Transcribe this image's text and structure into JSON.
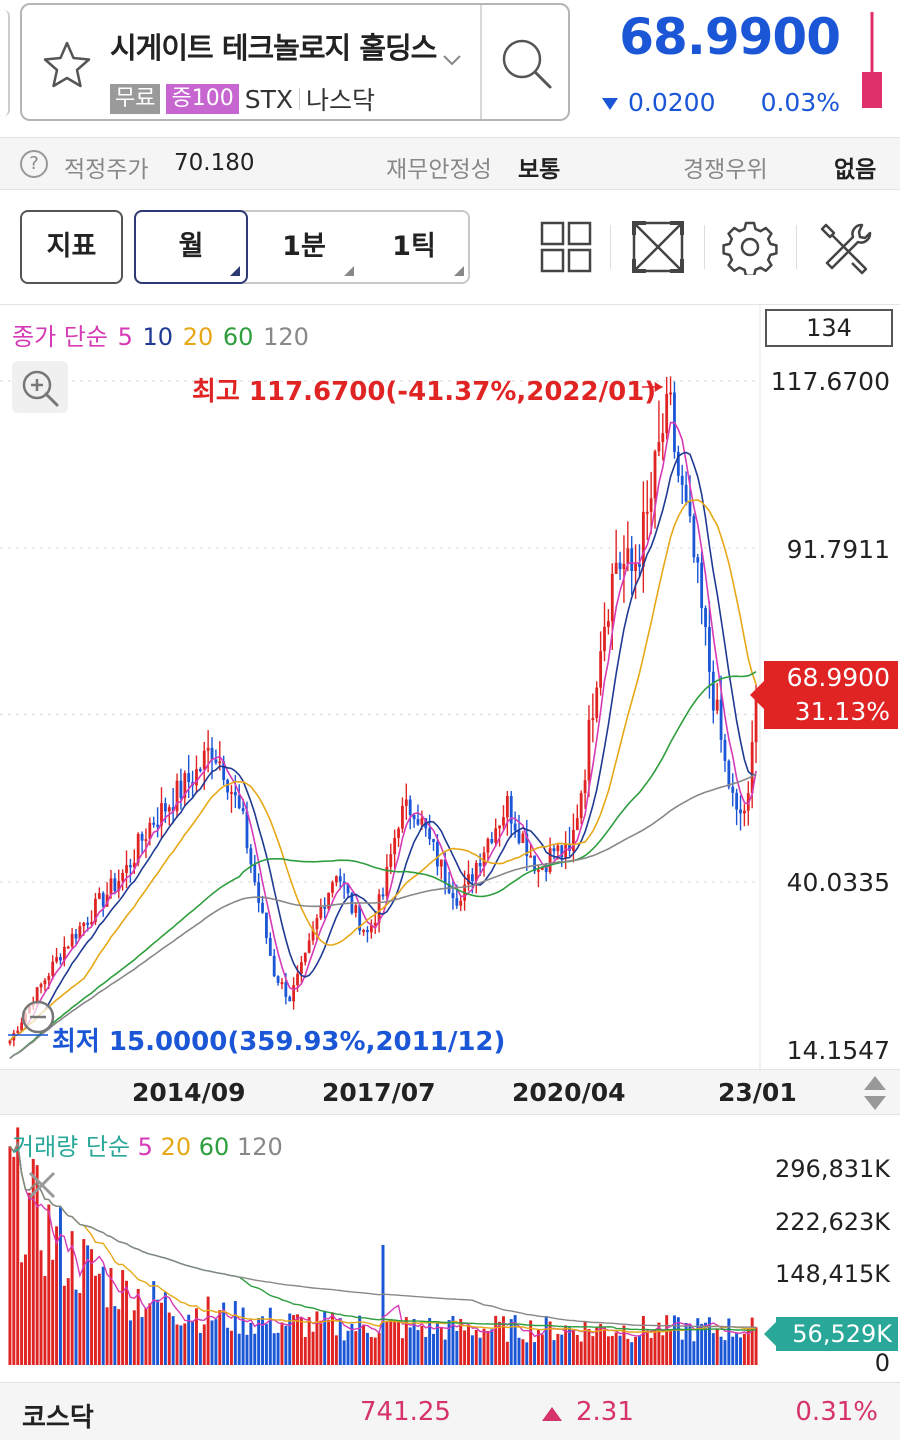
{
  "header": {
    "stock_name": "시게이트 테크놀로지 홀딩스",
    "badge_free": "무료",
    "badge_margin": "증100",
    "ticker": "STX",
    "exchange": "나스닥",
    "price": "68.9900",
    "change_value": "0.0200",
    "change_pct": "0.03%",
    "change_direction": "down",
    "down_color": "#1a56d6",
    "up_color": "#e02424"
  },
  "info": {
    "fair_price_label": "적정주가",
    "fair_price_value": "70.180",
    "financial_label": "재무안정성",
    "financial_value": "보통",
    "competitive_label": "경쟁우위",
    "competitive_value": "없음"
  },
  "toolbar": {
    "indicator_label": "지표",
    "periods": [
      "월",
      "1분",
      "1틱"
    ],
    "active_period": "월"
  },
  "chart": {
    "candle_count": "134",
    "ma_legend": {
      "prefix": "종가 단순",
      "periods": [
        {
          "label": "5",
          "color": "#d63ab6"
        },
        {
          "label": "10",
          "color": "#1f3a93"
        },
        {
          "label": "20",
          "color": "#e6a817"
        },
        {
          "label": "60",
          "color": "#2e9e3e"
        },
        {
          "label": "120",
          "color": "#888888"
        }
      ]
    },
    "max_label": "최고 117.6700(-41.37%,2022/01)",
    "min_label": "최저 15.0000(359.93%,2011/12)",
    "y_ticks": [
      "117.6700",
      "91.7911",
      "40.0335",
      "14.1547"
    ],
    "current_price": "68.9900",
    "current_pct": "31.13%",
    "x_ticks": [
      "2014/09",
      "2017/07",
      "2020/04",
      "23/01"
    ]
  },
  "volume": {
    "legend_prefix": "거래량 단순",
    "periods": [
      {
        "label": "5",
        "color": "#d63ab6"
      },
      {
        "label": "20",
        "color": "#e6a817"
      },
      {
        "label": "60",
        "color": "#2e9e3e"
      },
      {
        "label": "120",
        "color": "#888888"
      }
    ],
    "y_ticks": [
      "296,831K",
      "222,623K",
      "148,415K",
      "0"
    ],
    "current_volume": "56,529K"
  },
  "chart_data": {
    "type": "candlestick",
    "interval": "monthly",
    "y_range": [
      14.1547,
      117.67
    ],
    "high": {
      "value": 117.67,
      "date": "2022/01"
    },
    "low": {
      "value": 15.0,
      "date": "2011/12"
    },
    "last_close": 68.99,
    "x_tick_labels": [
      "2014/09",
      "2017/07",
      "2020/04",
      "23/01"
    ],
    "anchors": [
      [
        0,
        15.5
      ],
      [
        8,
        24
      ],
      [
        14,
        30
      ],
      [
        22,
        36
      ],
      [
        30,
        42
      ],
      [
        36,
        49
      ],
      [
        42,
        53
      ],
      [
        48,
        57
      ],
      [
        52,
        61
      ],
      [
        55,
        58
      ],
      [
        60,
        49
      ],
      [
        64,
        37
      ],
      [
        68,
        26
      ],
      [
        72,
        22
      ],
      [
        76,
        28
      ],
      [
        80,
        36
      ],
      [
        84,
        42
      ],
      [
        88,
        36
      ],
      [
        92,
        32
      ],
      [
        96,
        38
      ],
      [
        100,
        50
      ],
      [
        104,
        52
      ],
      [
        108,
        46
      ],
      [
        112,
        41
      ],
      [
        116,
        37
      ],
      [
        120,
        43
      ],
      [
        124,
        48
      ],
      [
        128,
        52
      ],
      [
        132,
        47
      ],
      [
        136,
        42
      ],
      [
        140,
        45
      ],
      [
        144,
        44
      ],
      [
        148,
        58
      ],
      [
        152,
        78
      ],
      [
        156,
        90
      ],
      [
        160,
        88
      ],
      [
        164,
        96
      ],
      [
        168,
        110
      ],
      [
        170,
        112
      ],
      [
        172,
        103
      ],
      [
        176,
        90
      ],
      [
        180,
        73
      ],
      [
        184,
        58
      ],
      [
        187,
        50
      ],
      [
        190,
        52
      ],
      [
        192,
        68.99
      ]
    ]
  },
  "bottom": {
    "index_name": "코스닥",
    "index_value": "741.25",
    "index_change": "2.31",
    "index_pct": "0.31%"
  }
}
